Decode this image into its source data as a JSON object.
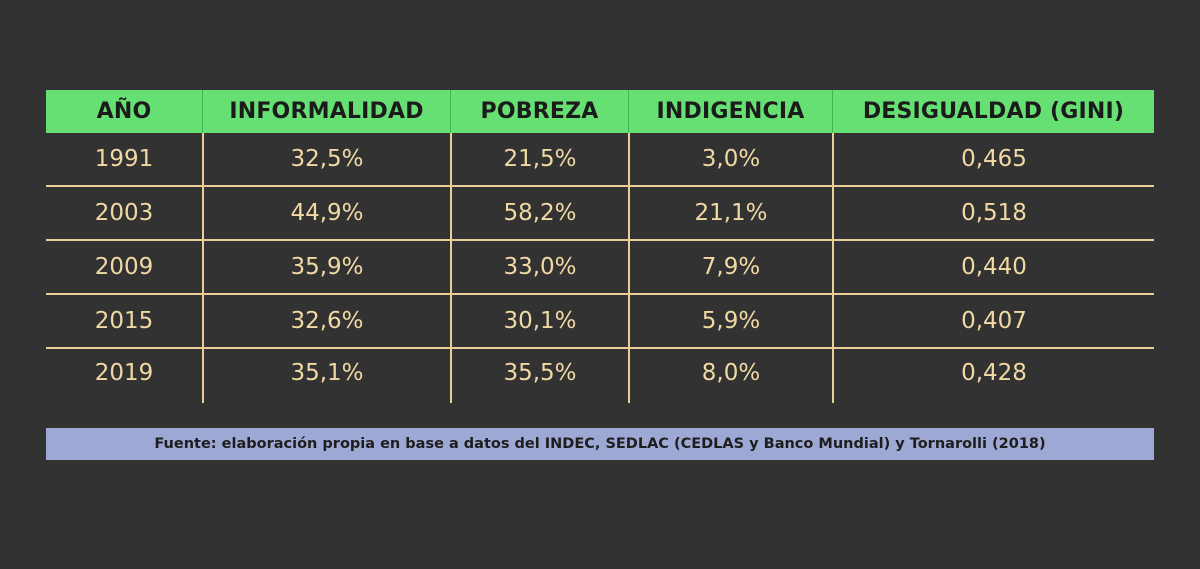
{
  "chart_data": {
    "type": "table",
    "columns": [
      "AÑO",
      "INFORMALIDAD",
      "POBREZA",
      "INDIGENCIA",
      "DESIGUALDAD (GINI)"
    ],
    "rows": [
      [
        "1991",
        "32,5%",
        "21,5%",
        "3,0%",
        "0,465"
      ],
      [
        "2003",
        "44,9%",
        "58,2%",
        "21,1%",
        "0,518"
      ],
      [
        "2009",
        "35,9%",
        "33,0%",
        "7,9%",
        "0,440"
      ],
      [
        "2015",
        "32,6%",
        "30,1%",
        "5,9%",
        "0,407"
      ],
      [
        "2019",
        "35,1%",
        "35,5%",
        "8,0%",
        "0,428"
      ]
    ]
  },
  "source": "Fuente: elaboración propia en base a datos del INDEC, SEDLAC (CEDLAS y Banco Mundial) y Tornarolli (2018)",
  "colors": {
    "background": "#323232",
    "header": "#66e073",
    "text": "#f1d9a4",
    "rule": "#e9cf96",
    "source_bar": "#9ea8d4"
  }
}
